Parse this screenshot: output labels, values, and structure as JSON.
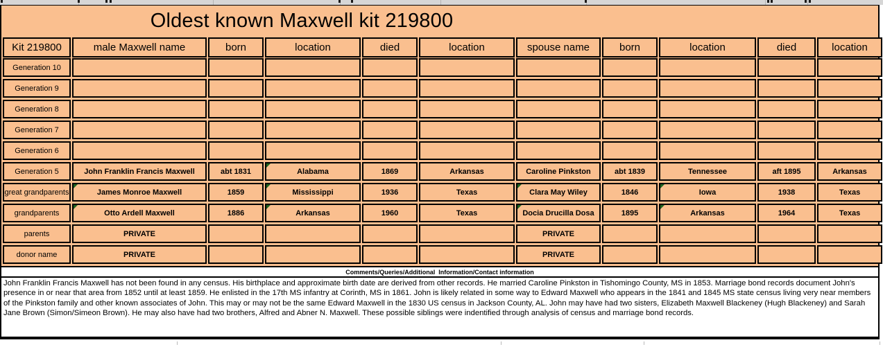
{
  "title": "Oldest known Maxwell kit 219800",
  "table": {
    "headers": [
      "Kit 219800",
      "male Maxwell name",
      "born",
      "location",
      "died",
      "location",
      "spouse name",
      "born",
      "location",
      "died",
      "location"
    ],
    "rows": [
      {
        "label": "Generation 10",
        "cells": [
          "",
          "",
          "",
          "",
          "",
          "",
          "",
          "",
          "",
          ""
        ]
      },
      {
        "label": "Generation 9",
        "cells": [
          "",
          "",
          "",
          "",
          "",
          "",
          "",
          "",
          "",
          ""
        ]
      },
      {
        "label": "Generation 8",
        "cells": [
          "",
          "",
          "",
          "",
          "",
          "",
          "",
          "",
          "",
          ""
        ]
      },
      {
        "label": "Generation 7",
        "cells": [
          "",
          "",
          "",
          "",
          "",
          "",
          "",
          "",
          "",
          ""
        ]
      },
      {
        "label": "Generation 6",
        "cells": [
          "",
          "",
          "",
          "",
          "",
          "",
          "",
          "",
          "",
          ""
        ]
      },
      {
        "label": "Generation 5",
        "cells": [
          "John Franklin Francis Maxwell",
          "abt 1831",
          "Alabama",
          "1869",
          "Arkansas",
          "Caroline Pinkston",
          "abt 1839",
          "Tennessee",
          "aft 1895",
          "Arkansas"
        ]
      },
      {
        "label": "great grandparents",
        "cells": [
          "James Monroe Maxwell",
          "1859",
          "Mississippi",
          "1936",
          "Texas",
          "Clara May Wiley",
          "1846",
          "Iowa",
          "1938",
          "Texas"
        ]
      },
      {
        "label": "grandparents",
        "cells": [
          "Otto Ardell Maxwell",
          "1886",
          "Arkansas",
          "1960",
          "Texas",
          "Docia Drucilla Dosa",
          "1895",
          "Arkansas",
          "1964",
          "Texas"
        ]
      },
      {
        "label": "parents",
        "cells": [
          "PRIVATE",
          "",
          "",
          "",
          "",
          "PRIVATE",
          "",
          "",
          "",
          ""
        ]
      },
      {
        "label": "donor name",
        "cells": [
          "PRIVATE",
          "",
          "",
          "",
          "",
          "PRIVATE",
          "",
          "",
          "",
          ""
        ]
      }
    ],
    "flagged_cells": [
      [
        5,
        3
      ],
      [
        6,
        1
      ],
      [
        6,
        3
      ],
      [
        6,
        6
      ],
      [
        6,
        8
      ],
      [
        7,
        1
      ],
      [
        7,
        3
      ],
      [
        7,
        6
      ],
      [
        7,
        8
      ]
    ]
  },
  "comments": {
    "header": "Comments/Queries/Additional  Information/Contact information",
    "body": "John Franklin Francis Maxwell has not been found in any census. His birthplace and approximate birth date are derived from other records. He married Caroline Pinkston in Tishomingo County, MS in 1853. Marriage bond records document John's presence in or near that area from 1852 until at least 1859. He enlisted in the 17th MS infantry at Corinth, MS in 1861. John is likely related in some way to Edward Maxwell who appears in the 1841 and 1845 MS state census living very near members of the Pinkston family and other known associates of John. This may or may not be the same Edward Maxwell in the 1830 US census in Jackson County, AL. John may have had two sisters, Elizabeth Maxwell Blackeney (Hugh Blackeney) and Sarah Jane Brown (Simon/Simeon Brown). He may also have had two brothers, Alfred and Abner N. Maxwell. These possible siblings were indentified through analysis of census and marriage bond records."
  },
  "colors": {
    "fill": "#FABF8F",
    "flag_triangle": "#1F6420",
    "grid_line": "#000000"
  }
}
